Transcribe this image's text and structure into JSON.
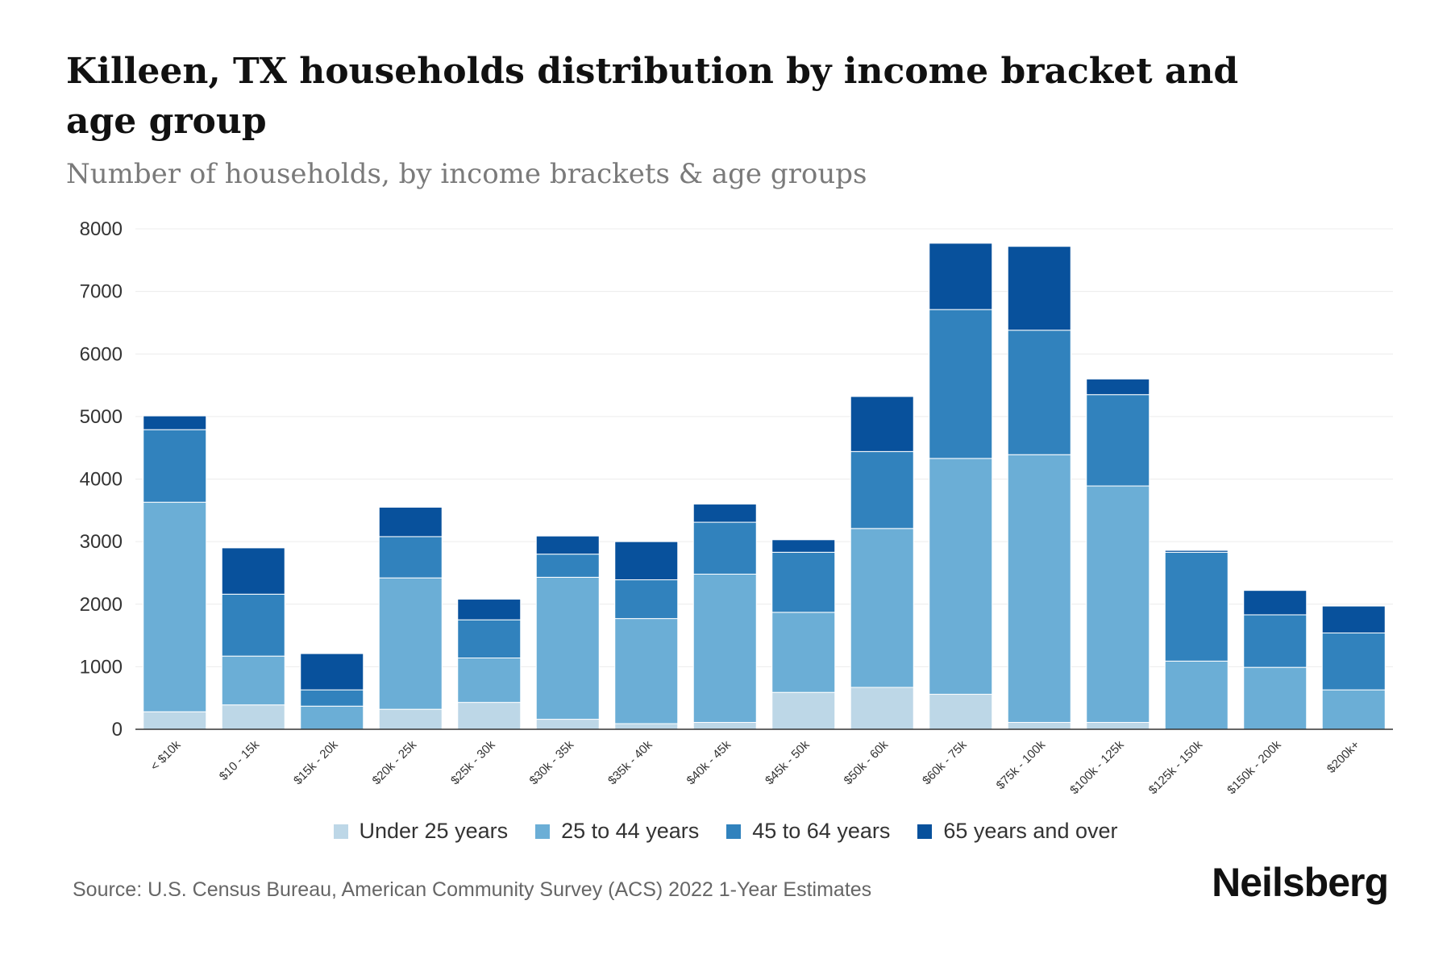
{
  "header": {
    "title": "Killeen, TX households distribution by income bracket and age group",
    "subtitle": "Number of households, by income brackets & age groups"
  },
  "footer": {
    "source": "Source: U.S. Census Bureau, American Community Survey (ACS) 2022 1-Year Estimates",
    "brand": "Neilsberg"
  },
  "chart_data": {
    "type": "bar",
    "stacked": true,
    "title": "Killeen, TX households distribution by income bracket and age group",
    "subtitle": "Number of households, by income brackets & age groups",
    "xlabel": "",
    "ylabel": "",
    "ylim": [
      0,
      8000
    ],
    "yticks": [
      0,
      1000,
      2000,
      3000,
      4000,
      5000,
      6000,
      7000,
      8000
    ],
    "grid": true,
    "legend_position": "bottom",
    "categories": [
      "< $10k",
      "$10 - 15k",
      "$15k - 20k",
      "$20k - 25k",
      "$25k - 30k",
      "$30k - 35k",
      "$35k - 40k",
      "$40k - 45k",
      "$45k - 50k",
      "$50k - 60k",
      "$60k - 75k",
      "$75k - 100k",
      "$100k - 125k",
      "$125k - 150k",
      "$150k - 200k",
      "$200k+"
    ],
    "series": [
      {
        "name": "Under 25 years",
        "color": "#bdd7e7",
        "values": [
          280,
          390,
          0,
          320,
          430,
          160,
          90,
          110,
          590,
          670,
          560,
          110,
          110,
          0,
          0,
          0
        ]
      },
      {
        "name": "25 to 44 years",
        "color": "#6baed6",
        "values": [
          3350,
          780,
          370,
          2100,
          710,
          2270,
          1680,
          2370,
          1280,
          2540,
          3770,
          4280,
          3780,
          1090,
          990,
          630
        ]
      },
      {
        "name": "45 to 64 years",
        "color": "#3182bd",
        "values": [
          1160,
          990,
          260,
          660,
          610,
          370,
          620,
          830,
          960,
          1230,
          2380,
          1990,
          1460,
          1740,
          840,
          910
        ]
      },
      {
        "name": "65 years and over",
        "color": "#08519c",
        "values": [
          220,
          740,
          580,
          470,
          330,
          290,
          610,
          290,
          200,
          880,
          1060,
          1340,
          250,
          30,
          390,
          430
        ]
      }
    ]
  }
}
